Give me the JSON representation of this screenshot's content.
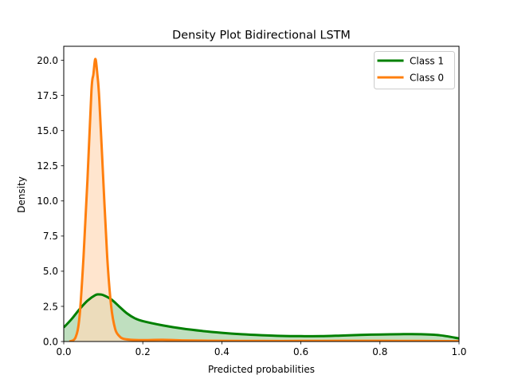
{
  "chart_data": {
    "type": "area",
    "title": "Density Plot Bidirectional LSTM",
    "xlabel": "Predicted probabilities",
    "ylabel": "Density",
    "xlim": [
      0,
      1
    ],
    "ylim": [
      0,
      21
    ],
    "x_ticks": [
      0.0,
      0.2,
      0.4,
      0.6,
      0.8,
      1.0
    ],
    "x_tick_labels": [
      "0.0",
      "0.2",
      "0.4",
      "0.6",
      "0.8",
      "1.0"
    ],
    "y_ticks": [
      0.0,
      2.5,
      5.0,
      7.5,
      10.0,
      12.5,
      15.0,
      17.5,
      20.0
    ],
    "y_tick_labels": [
      "0.0",
      "2.5",
      "5.0",
      "7.5",
      "10.0",
      "12.5",
      "15.0",
      "17.5",
      "20.0"
    ],
    "grid": false,
    "legend_position": "top-right",
    "series": [
      {
        "name": "Class 1",
        "color": "#008000",
        "fill": "#008000",
        "x": [
          0.0,
          0.02,
          0.04,
          0.06,
          0.08,
          0.09,
          0.1,
          0.12,
          0.14,
          0.16,
          0.18,
          0.2,
          0.25,
          0.3,
          0.35,
          0.4,
          0.45,
          0.5,
          0.55,
          0.6,
          0.65,
          0.7,
          0.75,
          0.8,
          0.85,
          0.9,
          0.95,
          1.0
        ],
        "y": [
          1.0,
          1.6,
          2.3,
          2.9,
          3.3,
          3.35,
          3.3,
          3.0,
          2.5,
          2.0,
          1.65,
          1.45,
          1.15,
          0.92,
          0.75,
          0.62,
          0.52,
          0.45,
          0.4,
          0.38,
          0.38,
          0.42,
          0.47,
          0.5,
          0.52,
          0.52,
          0.45,
          0.22
        ]
      },
      {
        "name": "Class 0",
        "color": "#ff7f0e",
        "fill": "#ffdab9",
        "x": [
          0.015,
          0.03,
          0.04,
          0.05,
          0.06,
          0.07,
          0.075,
          0.08,
          0.085,
          0.09,
          0.1,
          0.11,
          0.12,
          0.13,
          0.14,
          0.15,
          0.17,
          0.2,
          0.25,
          0.3,
          0.4,
          0.5,
          0.6,
          0.7,
          0.8,
          0.9,
          1.0
        ],
        "y": [
          0.0,
          0.3,
          1.8,
          6.0,
          11.5,
          17.8,
          19.0,
          20.1,
          19.0,
          17.2,
          11.5,
          6.0,
          2.5,
          0.9,
          0.4,
          0.2,
          0.12,
          0.1,
          0.12,
          0.08,
          0.05,
          0.04,
          0.04,
          0.05,
          0.05,
          0.04,
          0.02
        ]
      }
    ]
  }
}
